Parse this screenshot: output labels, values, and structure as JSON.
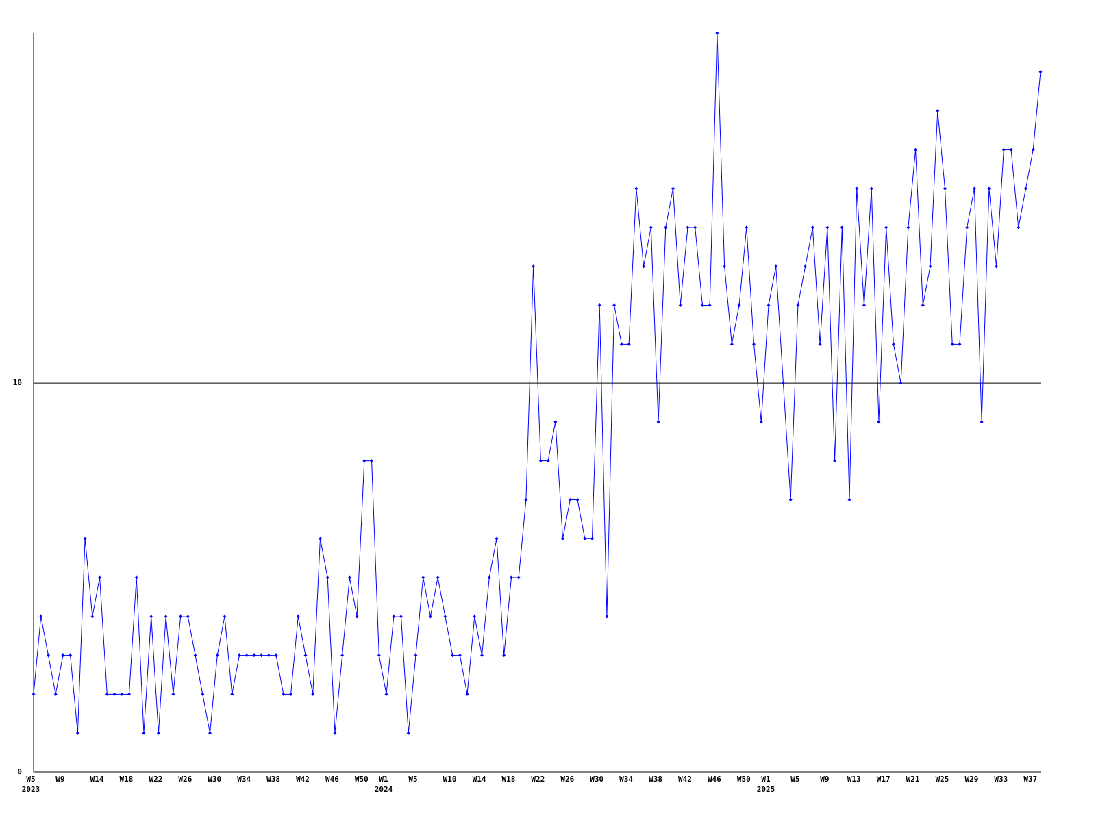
{
  "chart_data": {
    "type": "line",
    "categories": [
      "W5",
      null,
      null,
      null,
      "W9",
      null,
      null,
      null,
      null,
      "W14",
      null,
      null,
      null,
      "W18",
      null,
      null,
      null,
      "W22",
      null,
      null,
      null,
      "W26",
      null,
      null,
      null,
      "W30",
      null,
      null,
      null,
      "W34",
      null,
      null,
      null,
      "W38",
      null,
      null,
      null,
      "W42",
      null,
      null,
      null,
      "W46",
      null,
      null,
      null,
      "W50",
      null,
      null,
      "W1",
      null,
      null,
      null,
      "W5",
      null,
      null,
      null,
      null,
      "W10",
      null,
      null,
      null,
      "W14",
      null,
      null,
      null,
      "W18",
      null,
      null,
      null,
      "W22",
      null,
      null,
      null,
      "W26",
      null,
      null,
      null,
      "W30",
      null,
      null,
      null,
      "W34",
      null,
      null,
      null,
      "W38",
      null,
      null,
      null,
      "W42",
      null,
      null,
      null,
      "W46",
      null,
      null,
      null,
      "W50",
      null,
      null,
      "W1",
      null,
      null,
      null,
      "W5",
      null,
      null,
      null,
      "W9",
      null,
      null,
      null,
      "W13",
      null,
      null,
      null,
      "W17",
      null,
      null,
      null,
      "W21",
      null,
      null,
      null,
      "W25",
      null,
      null,
      null,
      "W29",
      null,
      null,
      null,
      "W33",
      null,
      null,
      null,
      "W37",
      null
    ],
    "years": [
      "2023",
      null,
      null,
      null,
      null,
      null,
      null,
      null,
      null,
      null,
      null,
      null,
      null,
      null,
      null,
      null,
      null,
      null,
      null,
      null,
      null,
      null,
      null,
      null,
      null,
      null,
      null,
      null,
      null,
      null,
      null,
      null,
      null,
      null,
      null,
      null,
      null,
      null,
      null,
      null,
      null,
      null,
      null,
      null,
      null,
      null,
      null,
      null,
      "2024",
      null,
      null,
      null,
      null,
      null,
      null,
      null,
      null,
      null,
      null,
      null,
      null,
      null,
      null,
      null,
      null,
      null,
      null,
      null,
      null,
      null,
      null,
      null,
      null,
      null,
      null,
      null,
      null,
      null,
      null,
      null,
      null,
      null,
      null,
      null,
      null,
      null,
      null,
      null,
      null,
      null,
      null,
      null,
      null,
      null,
      null,
      null,
      null,
      null,
      null,
      null,
      "2025",
      null,
      null,
      null,
      null,
      null,
      null,
      null,
      null,
      null,
      null,
      null,
      null,
      null,
      null,
      null,
      null,
      null,
      null,
      null,
      null,
      null,
      null,
      null,
      null,
      null,
      null,
      null,
      null,
      null,
      null,
      null,
      null,
      null,
      null,
      null,
      null,
      null
    ],
    "series": [
      {
        "color": "#0000ff",
        "values": [
          2,
          4,
          3,
          2,
          3,
          3,
          1,
          6,
          4,
          5,
          2,
          2,
          2,
          2,
          5,
          1,
          4,
          1,
          4,
          2,
          4,
          4,
          3,
          2,
          1,
          3,
          4,
          2,
          3,
          3,
          3,
          3,
          3,
          3,
          2,
          2,
          4,
          3,
          2,
          6,
          5,
          1,
          3,
          5,
          4,
          8,
          8,
          3,
          2,
          4,
          4,
          1,
          3,
          5,
          4,
          5,
          4,
          3,
          3,
          2,
          4,
          3,
          5,
          6,
          3,
          5,
          5,
          7,
          13,
          8,
          8,
          9,
          6,
          7,
          7,
          6,
          6,
          12,
          4,
          12,
          11,
          11,
          15,
          13,
          14,
          9,
          14,
          15,
          12,
          14,
          14,
          12,
          12,
          19,
          13,
          11,
          12,
          14,
          11,
          9,
          12,
          13,
          10,
          7,
          12,
          13,
          14,
          11,
          14,
          8,
          14,
          7,
          15,
          12,
          15,
          9,
          14,
          11,
          10,
          14,
          16,
          12,
          13,
          17,
          15,
          11,
          11,
          14,
          15,
          9,
          15,
          13,
          16,
          16,
          14,
          15,
          16,
          18
        ]
      }
    ],
    "ylim": [
      0,
      19
    ],
    "yticks": [
      0,
      10
    ],
    "grid": true
  }
}
